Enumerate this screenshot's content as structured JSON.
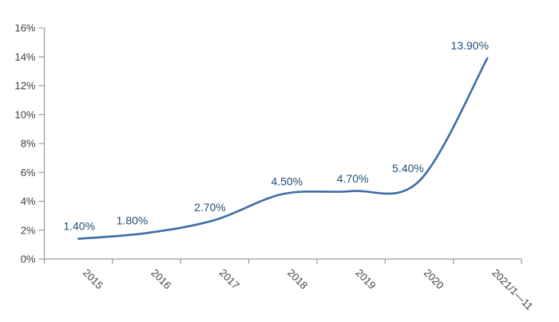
{
  "page": {
    "background": "#ffffff"
  },
  "chart_data": {
    "type": "line",
    "title": "",
    "xlabel": "",
    "ylabel": "",
    "categories": [
      "2015",
      "2016",
      "2017",
      "2018",
      "2019",
      "2020",
      "2021/1—11"
    ],
    "values": [
      1.4,
      1.8,
      2.7,
      4.5,
      4.7,
      5.4,
      13.9
    ],
    "data_labels": [
      "1.40%",
      "1.80%",
      "2.70%",
      "4.50%",
      "4.70%",
      "5.40%",
      "13.90%"
    ],
    "ylim": [
      0,
      16
    ],
    "ytick_step": 2,
    "ytick_labels": [
      "0%",
      "2%",
      "4%",
      "6%",
      "8%",
      "10%",
      "12%",
      "14%",
      "16%"
    ],
    "grid": false,
    "legend_position": "none",
    "smoothed": true,
    "x_label_rotation_deg": 45,
    "label_dx": [
      1,
      -18,
      -6,
      5,
      2,
      -14,
      -22
    ],
    "colors": {
      "line": "#3E6DA5",
      "data_label": "#1F4E79",
      "axis_line": "#9B9B9B",
      "axis_text": "#404040"
    }
  }
}
